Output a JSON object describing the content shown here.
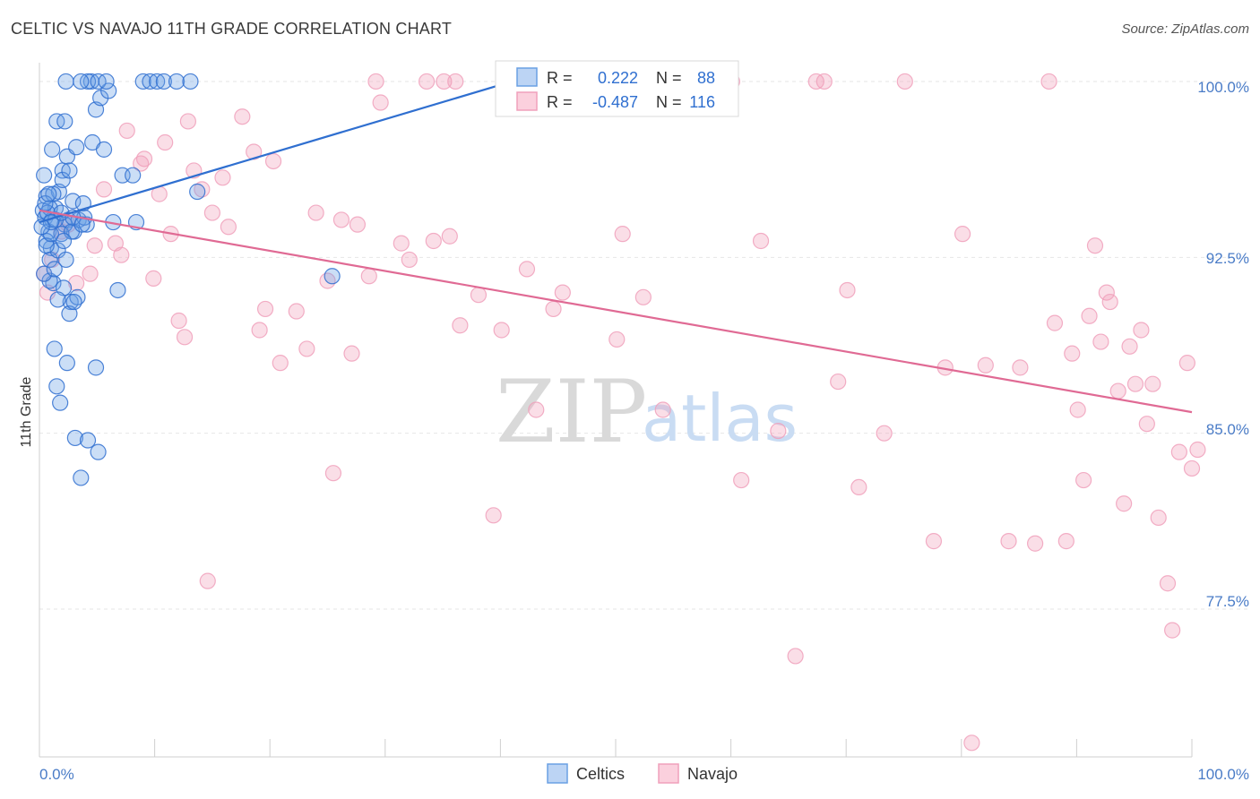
{
  "title": "CELTIC VS NAVAJO 11TH GRADE CORRELATION CHART",
  "source": "Source: ZipAtlas.com",
  "watermark": {
    "zip": "ZIP",
    "atlas": "atlas"
  },
  "colors": {
    "celtics": "#6aa0e4",
    "celtics_line": "#2f6fd0",
    "navajo": "#f0a0bb",
    "navajo_line": "#e06a94",
    "grid": "#e6e6e6",
    "axis_text": "#4a7cc7"
  },
  "legend": {
    "rows": [
      {
        "r_label": "R = ",
        "r_value": "0.222",
        "n_label": "N = ",
        "n_value": "88"
      },
      {
        "r_label": "R = ",
        "r_value": "-0.487",
        "n_label": "N = ",
        "n_value": "116"
      }
    ]
  },
  "chart_data": {
    "type": "scatter",
    "title": "CELTIC VS NAVAJO 11TH GRADE CORRELATION CHART",
    "xlabel": "",
    "ylabel": "11th Grade",
    "xlim": [
      0,
      100
    ],
    "ylim": [
      71.2,
      100.8
    ],
    "x_tick_labels": [
      "0.0%",
      "100.0%"
    ],
    "y_ticks": [
      100.0,
      92.5,
      85.0,
      77.5
    ],
    "y_tick_labels": [
      "100.0%",
      "92.5%",
      "85.0%",
      "77.5%"
    ],
    "grid": true,
    "legend_position": "top-center",
    "series": [
      {
        "name": "Celtics",
        "r": 0.222,
        "n": 88,
        "trend": {
          "x": [
            0,
            41
          ],
          "y": [
            94.0,
            100.0
          ]
        },
        "points": [
          [
            0.3,
            94.5
          ],
          [
            0.5,
            94.2
          ],
          [
            0.6,
            95.1
          ],
          [
            0.4,
            96.0
          ],
          [
            0.8,
            93.6
          ],
          [
            1.0,
            92.9
          ],
          [
            1.2,
            91.4
          ],
          [
            0.6,
            93.2
          ],
          [
            0.9,
            92.4
          ],
          [
            1.4,
            94.6
          ],
          [
            1.7,
            95.3
          ],
          [
            1.1,
            97.1
          ],
          [
            1.5,
            98.3
          ],
          [
            2.2,
            98.3
          ],
          [
            2.0,
            96.2
          ],
          [
            2.4,
            96.8
          ],
          [
            2.0,
            95.8
          ],
          [
            2.6,
            96.2
          ],
          [
            2.9,
            94.9
          ],
          [
            3.2,
            97.2
          ],
          [
            2.5,
            94.1
          ],
          [
            3.0,
            93.6
          ],
          [
            3.4,
            94.1
          ],
          [
            3.8,
            94.8
          ],
          [
            2.2,
            93.9
          ],
          [
            1.9,
            93.5
          ],
          [
            1.6,
            92.8
          ],
          [
            2.1,
            91.2
          ],
          [
            2.7,
            90.6
          ],
          [
            3.3,
            90.8
          ],
          [
            4.1,
            93.9
          ],
          [
            4.6,
            97.4
          ],
          [
            4.9,
            98.8
          ],
          [
            5.6,
            97.1
          ],
          [
            5.3,
            99.3
          ],
          [
            6.0,
            99.6
          ],
          [
            4.5,
            100.0
          ],
          [
            4.2,
            100.0
          ],
          [
            5.1,
            100.0
          ],
          [
            5.8,
            100.0
          ],
          [
            2.3,
            100.0
          ],
          [
            3.6,
            100.0
          ],
          [
            7.2,
            96.0
          ],
          [
            8.4,
            94.0
          ],
          [
            8.1,
            96.0
          ],
          [
            9.0,
            100.0
          ],
          [
            9.6,
            100.0
          ],
          [
            10.2,
            100.0
          ],
          [
            10.8,
            100.0
          ],
          [
            11.9,
            100.0
          ],
          [
            13.1,
            100.0
          ],
          [
            13.7,
            95.3
          ],
          [
            1.3,
            88.6
          ],
          [
            2.4,
            88.0
          ],
          [
            4.9,
            87.8
          ],
          [
            1.5,
            87.0
          ],
          [
            1.8,
            86.3
          ],
          [
            3.1,
            84.8
          ],
          [
            4.2,
            84.7
          ],
          [
            5.1,
            84.2
          ],
          [
            3.6,
            83.1
          ],
          [
            0.6,
            93.0
          ],
          [
            1.1,
            94.1
          ],
          [
            0.9,
            94.6
          ],
          [
            2.8,
            93.6
          ],
          [
            3.9,
            94.2
          ],
          [
            2.3,
            92.4
          ],
          [
            1.6,
            90.7
          ],
          [
            0.9,
            91.5
          ],
          [
            6.4,
            94.0
          ],
          [
            0.7,
            94.4
          ],
          [
            1.4,
            94.1
          ],
          [
            0.4,
            91.8
          ],
          [
            1.2,
            95.2
          ],
          [
            2.1,
            93.2
          ],
          [
            1.0,
            93.5
          ],
          [
            2.6,
            90.1
          ],
          [
            3.0,
            90.6
          ],
          [
            25.4,
            91.7
          ],
          [
            0.5,
            94.8
          ],
          [
            0.8,
            95.2
          ],
          [
            1.9,
            94.4
          ],
          [
            1.3,
            92.0
          ],
          [
            2.9,
            94.2
          ],
          [
            3.7,
            93.9
          ],
          [
            1.0,
            94.0
          ],
          [
            0.2,
            93.8
          ],
          [
            6.8,
            91.1
          ]
        ]
      },
      {
        "name": "Navajo",
        "r": -0.487,
        "n": 116,
        "trend": {
          "x": [
            0,
            100
          ],
          "y": [
            94.5,
            85.9
          ]
        },
        "points": [
          [
            0.4,
            91.8
          ],
          [
            0.7,
            91.0
          ],
          [
            1.1,
            92.4
          ],
          [
            1.9,
            93.6
          ],
          [
            2.5,
            93.9
          ],
          [
            3.2,
            91.4
          ],
          [
            4.4,
            91.8
          ],
          [
            4.8,
            93.0
          ],
          [
            5.6,
            95.4
          ],
          [
            6.6,
            93.1
          ],
          [
            7.1,
            92.6
          ],
          [
            7.6,
            97.9
          ],
          [
            9.1,
            96.7
          ],
          [
            8.8,
            96.5
          ],
          [
            9.9,
            91.6
          ],
          [
            10.4,
            95.2
          ],
          [
            10.9,
            97.4
          ],
          [
            11.4,
            93.5
          ],
          [
            12.1,
            89.8
          ],
          [
            12.6,
            89.1
          ],
          [
            12.9,
            98.3
          ],
          [
            13.4,
            96.2
          ],
          [
            14.1,
            95.4
          ],
          [
            14.6,
            78.7
          ],
          [
            15.0,
            94.4
          ],
          [
            15.9,
            95.9
          ],
          [
            16.4,
            93.8
          ],
          [
            17.6,
            98.5
          ],
          [
            18.6,
            97.0
          ],
          [
            19.1,
            89.4
          ],
          [
            19.6,
            90.3
          ],
          [
            20.3,
            96.6
          ],
          [
            20.9,
            88.0
          ],
          [
            22.3,
            90.2
          ],
          [
            23.2,
            88.6
          ],
          [
            24.0,
            94.4
          ],
          [
            25.0,
            91.5
          ],
          [
            25.5,
            83.3
          ],
          [
            26.2,
            94.1
          ],
          [
            27.1,
            88.4
          ],
          [
            27.6,
            93.9
          ],
          [
            28.6,
            91.7
          ],
          [
            29.2,
            100.0
          ],
          [
            29.6,
            99.1
          ],
          [
            31.4,
            93.1
          ],
          [
            32.1,
            92.4
          ],
          [
            33.6,
            100.0
          ],
          [
            34.2,
            93.2
          ],
          [
            35.1,
            100.0
          ],
          [
            35.6,
            93.4
          ],
          [
            36.1,
            100.0
          ],
          [
            36.5,
            89.6
          ],
          [
            38.1,
            90.9
          ],
          [
            39.4,
            81.5
          ],
          [
            40.1,
            89.4
          ],
          [
            42.3,
            92.0
          ],
          [
            43.1,
            86.0
          ],
          [
            44.6,
            90.3
          ],
          [
            45.4,
            91.0
          ],
          [
            47.1,
            100.0
          ],
          [
            47.9,
            100.0
          ],
          [
            49.6,
            100.0
          ],
          [
            50.1,
            89.0
          ],
          [
            50.6,
            93.5
          ],
          [
            52.4,
            90.8
          ],
          [
            54.1,
            86.0
          ],
          [
            55.6,
            100.0
          ],
          [
            56.1,
            100.0
          ],
          [
            57.1,
            100.0
          ],
          [
            57.8,
            100.0
          ],
          [
            58.4,
            100.0
          ],
          [
            60.1,
            100.0
          ],
          [
            60.9,
            83.0
          ],
          [
            62.6,
            93.2
          ],
          [
            64.1,
            85.1
          ],
          [
            65.6,
            75.5
          ],
          [
            67.4,
            100.0
          ],
          [
            68.1,
            100.0
          ],
          [
            69.3,
            87.2
          ],
          [
            70.1,
            91.1
          ],
          [
            71.1,
            82.7
          ],
          [
            73.3,
            85.0
          ],
          [
            75.1,
            100.0
          ],
          [
            77.6,
            80.4
          ],
          [
            78.6,
            87.8
          ],
          [
            80.1,
            93.5
          ],
          [
            80.9,
            71.8
          ],
          [
            82.1,
            87.9
          ],
          [
            84.1,
            80.4
          ],
          [
            85.1,
            87.8
          ],
          [
            86.4,
            80.3
          ],
          [
            87.6,
            100.0
          ],
          [
            88.1,
            89.7
          ],
          [
            89.1,
            80.4
          ],
          [
            89.6,
            88.4
          ],
          [
            90.1,
            86.0
          ],
          [
            90.6,
            83.0
          ],
          [
            91.1,
            90.0
          ],
          [
            91.6,
            93.0
          ],
          [
            92.6,
            91.0
          ],
          [
            92.9,
            90.6
          ],
          [
            92.1,
            88.9
          ],
          [
            93.6,
            86.8
          ],
          [
            94.1,
            82.0
          ],
          [
            94.6,
            88.7
          ],
          [
            95.1,
            87.1
          ],
          [
            95.6,
            89.4
          ],
          [
            96.1,
            85.4
          ],
          [
            96.6,
            87.1
          ],
          [
            97.1,
            81.4
          ],
          [
            97.9,
            78.6
          ],
          [
            98.3,
            76.6
          ],
          [
            98.9,
            84.2
          ],
          [
            99.6,
            88.0
          ],
          [
            100.0,
            83.5
          ],
          [
            100.5,
            84.3
          ]
        ]
      }
    ]
  },
  "bottom_legend": {
    "items": [
      {
        "label": "Celtics"
      },
      {
        "label": "Navajo"
      }
    ]
  }
}
